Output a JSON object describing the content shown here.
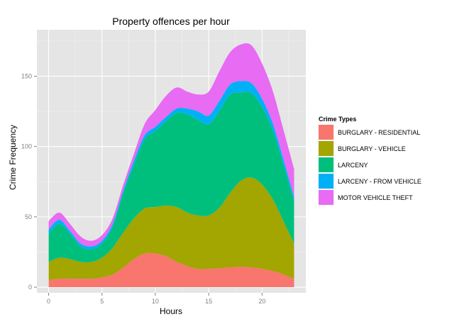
{
  "chart_data": {
    "type": "area",
    "stacked": true,
    "title": "Property offences per hour",
    "xlabel": "Hours",
    "ylabel": "Crime Frequency",
    "xlim": [
      -1.1,
      24.1
    ],
    "ylim": [
      -4,
      183
    ],
    "xticks": [
      0,
      5,
      10,
      15,
      20
    ],
    "yticks": [
      0,
      50,
      100,
      150
    ],
    "grid": true,
    "legend_position": "right",
    "legend_title": "Crime Types",
    "x": [
      0,
      1,
      2,
      3,
      4,
      5,
      6,
      7,
      8,
      9,
      10,
      11,
      12,
      13,
      14,
      15,
      16,
      17,
      18,
      19,
      20,
      21,
      22,
      23
    ],
    "series": [
      {
        "name": "BURGLARY - RESIDENTIAL",
        "color": "#F8766D",
        "values": [
          5,
          6,
          6,
          6,
          6,
          7,
          9,
          14,
          20,
          24,
          24,
          22,
          18,
          15,
          13,
          13,
          13.5,
          14,
          14.5,
          14,
          13,
          11.5,
          9,
          6
        ]
      },
      {
        "name": "BURGLARY - VEHICLE",
        "color": "#A3A500",
        "values": [
          13,
          15,
          14,
          12,
          12,
          14,
          19,
          25,
          29,
          32,
          33,
          36,
          39,
          38,
          38,
          38,
          43,
          53,
          61,
          64,
          60,
          51,
          38,
          25
        ]
      },
      {
        "name": "LARCENY",
        "color": "#00BF7D",
        "values": [
          20,
          24,
          18,
          11,
          9,
          10,
          15,
          28,
          38,
          49,
          54,
          60,
          67,
          70,
          68,
          65,
          69,
          70,
          63,
          60,
          55,
          49,
          40,
          30
        ]
      },
      {
        "name": "LARCENY - FROM VEHICLE",
        "color": "#00B0F6",
        "values": [
          3,
          3,
          2,
          2,
          2,
          2,
          2,
          2,
          3,
          3,
          3,
          3,
          3,
          4,
          6,
          6,
          7,
          7,
          8,
          7,
          6,
          5,
          4,
          3
        ]
      },
      {
        "name": "MOTOR VEHICLE THEFT",
        "color": "#E76BF3",
        "values": [
          6,
          5,
          5,
          5,
          4,
          4,
          4,
          4,
          5,
          8,
          12,
          15,
          15,
          12,
          12,
          17,
          21,
          23,
          26,
          27,
          25,
          23,
          21,
          20
        ]
      }
    ]
  }
}
